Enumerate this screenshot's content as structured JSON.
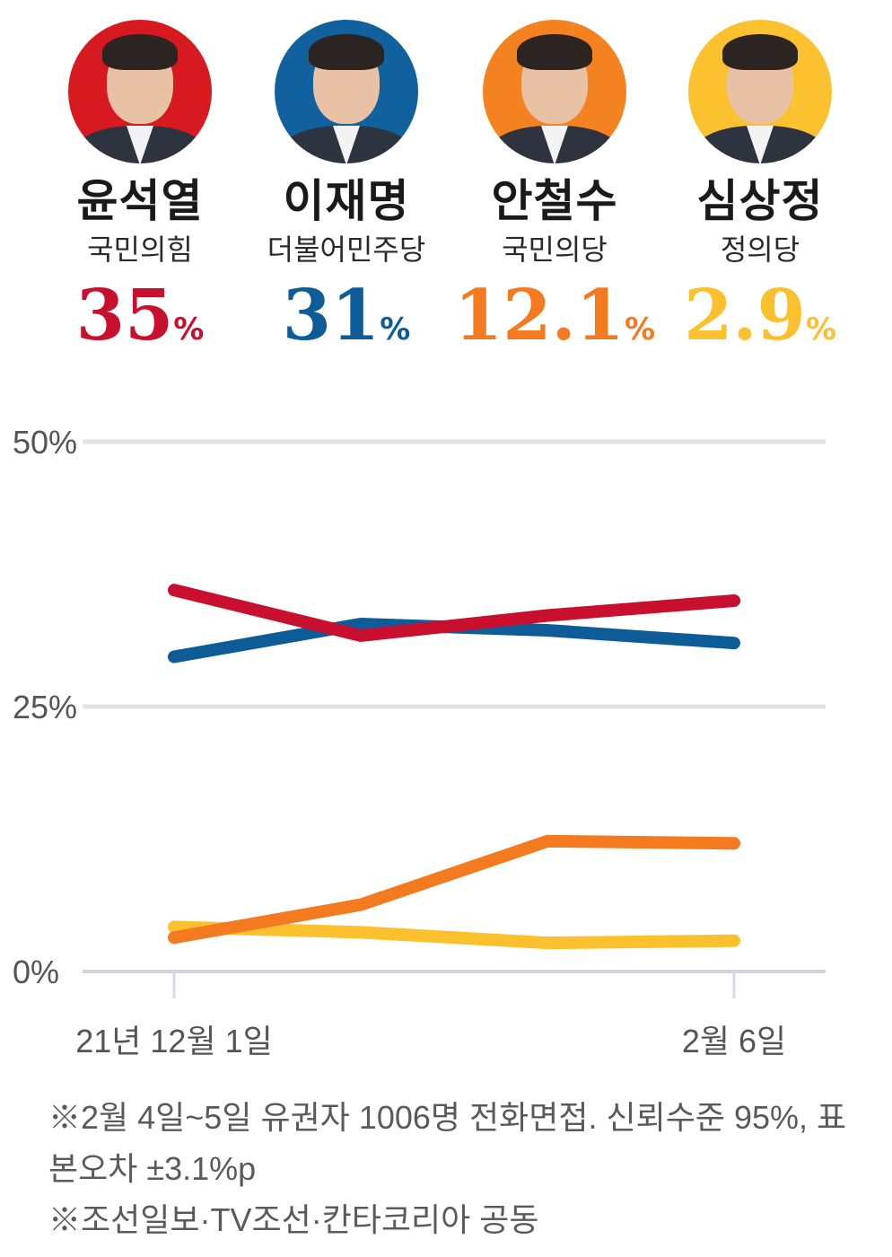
{
  "candidates": [
    {
      "name": "윤석열",
      "party": "국민의힘",
      "value": "35",
      "unit": "%",
      "color": "#c8102e",
      "bg": "#d71920",
      "icon": "portrait-photo"
    },
    {
      "name": "이재명",
      "party": "더불어민주당",
      "value": "31",
      "unit": "%",
      "color": "#0d5b97",
      "bg": "#10619d",
      "icon": "portrait-photo"
    },
    {
      "name": "안철수",
      "party": "국민의당",
      "value": "12.1",
      "unit": "%",
      "color": "#f47a20",
      "bg": "#f58220",
      "icon": "portrait-photo"
    },
    {
      "name": "심상정",
      "party": "정의당",
      "value": "2.9",
      "unit": "%",
      "color": "#fbc02d",
      "bg": "#fcc12f",
      "icon": "portrait-photo"
    }
  ],
  "chart_data": {
    "type": "line",
    "x": [
      "21년 12월 1일",
      "",
      "",
      "2월 6일"
    ],
    "xticks": [
      "21년 12월 1일",
      "2월 6일"
    ],
    "yticks": [
      "0%",
      "25%",
      "50%"
    ],
    "ylim": [
      0,
      50
    ],
    "grid": true,
    "series": [
      {
        "name": "윤석열",
        "color": "#c8102e",
        "values": [
          36,
          31.7,
          33.6,
          35
        ]
      },
      {
        "name": "이재명",
        "color": "#0d5b97",
        "values": [
          29.7,
          32.8,
          32.2,
          31
        ]
      },
      {
        "name": "안철수",
        "color": "#f47a20",
        "values": [
          3.2,
          6.3,
          12.3,
          12.1
        ]
      },
      {
        "name": "심상정",
        "color": "#fbc02d",
        "values": [
          4.2,
          3.7,
          2.7,
          2.9
        ]
      }
    ]
  },
  "notes": [
    "※2월 4일~5일 유권자 1006명 전화면접. 신뢰수준 95%, 표본오차 ±3.1%p",
    "※조선일보·TV조선·칸타코리아 공동"
  ]
}
